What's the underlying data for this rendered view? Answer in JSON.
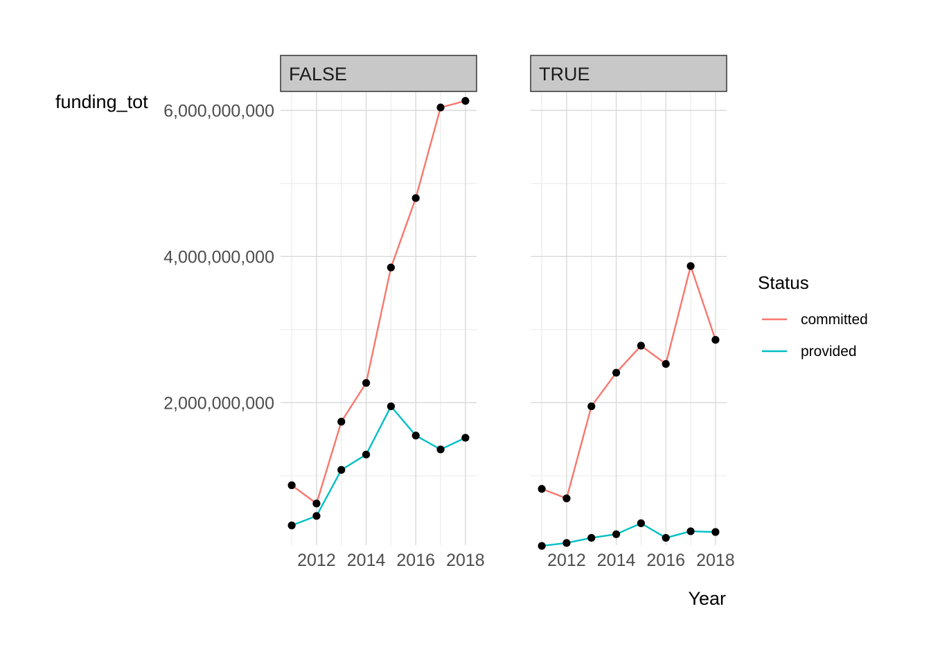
{
  "chart_data": {
    "type": "line",
    "facet_variable_values": [
      "FALSE",
      "TRUE"
    ],
    "xlabel": "Year",
    "ylabel": "funding_tot",
    "x_ticks": [
      2012,
      2014,
      2016,
      2018
    ],
    "y_ticks": [
      "2,000,000,000",
      "4,000,000,000",
      "6,000,000,000"
    ],
    "y_tick_values": [
      2000000000,
      4000000000,
      6000000000
    ],
    "xlim": [
      2010.55,
      2018.45
    ],
    "ylim": [
      50000000,
      6250000000
    ],
    "legend": {
      "title": "Status",
      "placement": "right",
      "entries": [
        {
          "label": "committed",
          "color": "#F8766D"
        },
        {
          "label": "provided",
          "color": "#00BFC4"
        }
      ]
    },
    "point_color": "#000000",
    "grid": true,
    "x": [
      2011,
      2012,
      2013,
      2014,
      2015,
      2016,
      2017,
      2018
    ],
    "facets": [
      {
        "label": "FALSE",
        "series": [
          {
            "name": "committed",
            "values": [
              870000000,
              620000000,
              1740000000,
              2270000000,
              3850000000,
              4800000000,
              6040000000,
              6130000000
            ]
          },
          {
            "name": "provided",
            "values": [
              320000000,
              450000000,
              1080000000,
              1290000000,
              1950000000,
              1550000000,
              1360000000,
              1520000000
            ]
          }
        ]
      },
      {
        "label": "TRUE",
        "series": [
          {
            "name": "committed",
            "values": [
              820000000,
              690000000,
              1950000000,
              2410000000,
              2780000000,
              2530000000,
              3870000000,
              2860000000
            ]
          },
          {
            "name": "provided",
            "values": [
              40000000,
              80000000,
              150000000,
              200000000,
              350000000,
              150000000,
              240000000,
              230000000
            ]
          }
        ]
      }
    ]
  }
}
